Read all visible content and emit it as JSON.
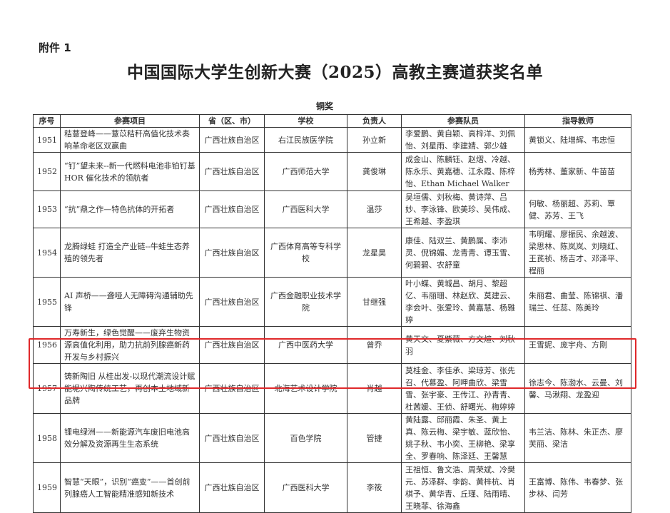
{
  "attachment_label": "附件 1",
  "title": "中国国际大学生创新大赛（2025）高教主赛道获奖名单",
  "award_level": "铜奖",
  "highlight_color": "#e0282a",
  "table": {
    "headers": [
      "序号",
      "参赛项目",
      "省（区、市）",
      "学校",
      "负责人",
      "参赛队员",
      "指导教师"
    ],
    "rows": [
      {
        "no": "1951",
        "project": "秸薏登峰——薏苡秸秆高值化技术奏响革命老区双赢曲",
        "province": "广西壮族自治区",
        "school": "右江民族医学院",
        "leader": "孙立新",
        "members": "李爱鹏、黄自颖、高梓洋、刘佩怡、刘星雨、李建婧、郭少雄",
        "teachers": "黄锁义、陆增辉、韦忠恒"
      },
      {
        "no": "1952",
        "project": "“钉”望未来--新一代燃料电池非铂钉基 HOR 催化技术的领航者",
        "province": "广西壮族自治区",
        "school": "广西师范大学",
        "leader": "龚俊琳",
        "members": "成金山、陈麟钰、赵熠、冷越、陈永乐、黄嘉穗、江永霞、陈梓怡、Ethan Michael Walker",
        "teachers": "杨秀林、董家新、牛苗苗"
      },
      {
        "no": "1953",
        "project": "“抗”鼎之作—特色抗体的开拓者",
        "province": "广西壮族自治区",
        "school": "广西医科大学",
        "leader": "温莎",
        "members": "吴垣儒、刘秋梅、黄诗萍、吕妙、李泳锋、欧美珍、吴伟成、王希越、李盈琪",
        "teachers": "何敏、杨丽超、苏莉、覃健、苏芳、王飞"
      },
      {
        "no": "1954",
        "project": "龙腾绿蛙 打造全产业链--牛蛙生态养殖的领先者",
        "province": "广西壮族自治区",
        "school": "广西体育高等专科学校",
        "leader": "龙星昊",
        "members": "康佳、陆双兰、黄鹏属、李沛灵、倪锦媚、龙青青、谭玉雪、何碧碧、农舒童",
        "teachers": "韦明耀、廖振民、余越波、梁思林、陈岚岚、刘晓红、王茋祯、杨吉才、邓泽平、程丽"
      },
      {
        "no": "1955",
        "project": "AI 声桥——聋哑人无障碍沟通辅助先锋",
        "province": "广西壮族自治区",
        "school": "广西金融职业技术学院",
        "leader": "甘继强",
        "members": "叶小蝶、黄城昌、胡月、黎超亿、韦丽珊、林赵欣、莫建云、李会叶、张爱玲、黄嘉慧、杨雅婷",
        "teachers": "朱丽君、曲莹、陈锦祺、潘瑞兰、任蕊、陈美玲"
      },
      {
        "no": "1956",
        "project": "万寿新生，绿色觉醒——废弃生物资源高值化利用，助力抗前列腺癌新药开发与乡村振兴",
        "province": "广西壮族自治区",
        "school": "广西中医药大学",
        "leader": "曾乔",
        "members": "黄天文、夏紫薇、方文煊、刘秋羽",
        "teachers": "王雪妮、庞宇舟、方刚"
      },
      {
        "no": "1957",
        "project": "铸新陶旧 从桂出发-以现代潮流设计赋能坭兴陶传统工艺，再创本土地域新品牌",
        "province": "广西壮族自治区",
        "school": "北海艺术设计学院",
        "leader": "肖越",
        "members": "莫桂金、李佳承、梁琼芳、张先召、代慕盈、阿呷曲欣、梁雪雪、张宇豪、王传江、孙青青、杜茜媛、王侦、舒曙光、梅婷婷",
        "teachers": "徐志今、陈渤水、云曼、刘馨、马湫翔、龙盈迎",
        "highlighted": true
      },
      {
        "no": "1958",
        "project": "锂电绿洲——新能源汽车废旧电池高效分解及资源再生生态系统",
        "province": "广西壮族自治区",
        "school": "百色学院",
        "leader": "管捷",
        "members": "黄陆露、邱丽霞、朱圣、黄上真、陈云梅、梁宇敏、蓝欣怡、姚子秋、韦小奕、王柳艳、梁享全、罗春响、陈泽廷、王馨慧",
        "teachers": "韦兰洁、陈林、朱正杰、廖芙丽、梁洁"
      },
      {
        "no": "1959",
        "project": "智慧“天眼”，识别“癌变”——首创前列腺癌人工智能精准感知新技术",
        "province": "广西壮族自治区",
        "school": "广西医科大学",
        "leader": "李筱",
        "members": "王祖恒、鲁文浩、周荣斌、冷樊元、苏泽群、李韵、黄梓杭、肖棋予、黄华青、丘瑾、陆雨晴、王晓菲、徐海鑫",
        "teachers": "王富博、陈伟、韦春梦、张步林、闫芳"
      }
    ]
  }
}
